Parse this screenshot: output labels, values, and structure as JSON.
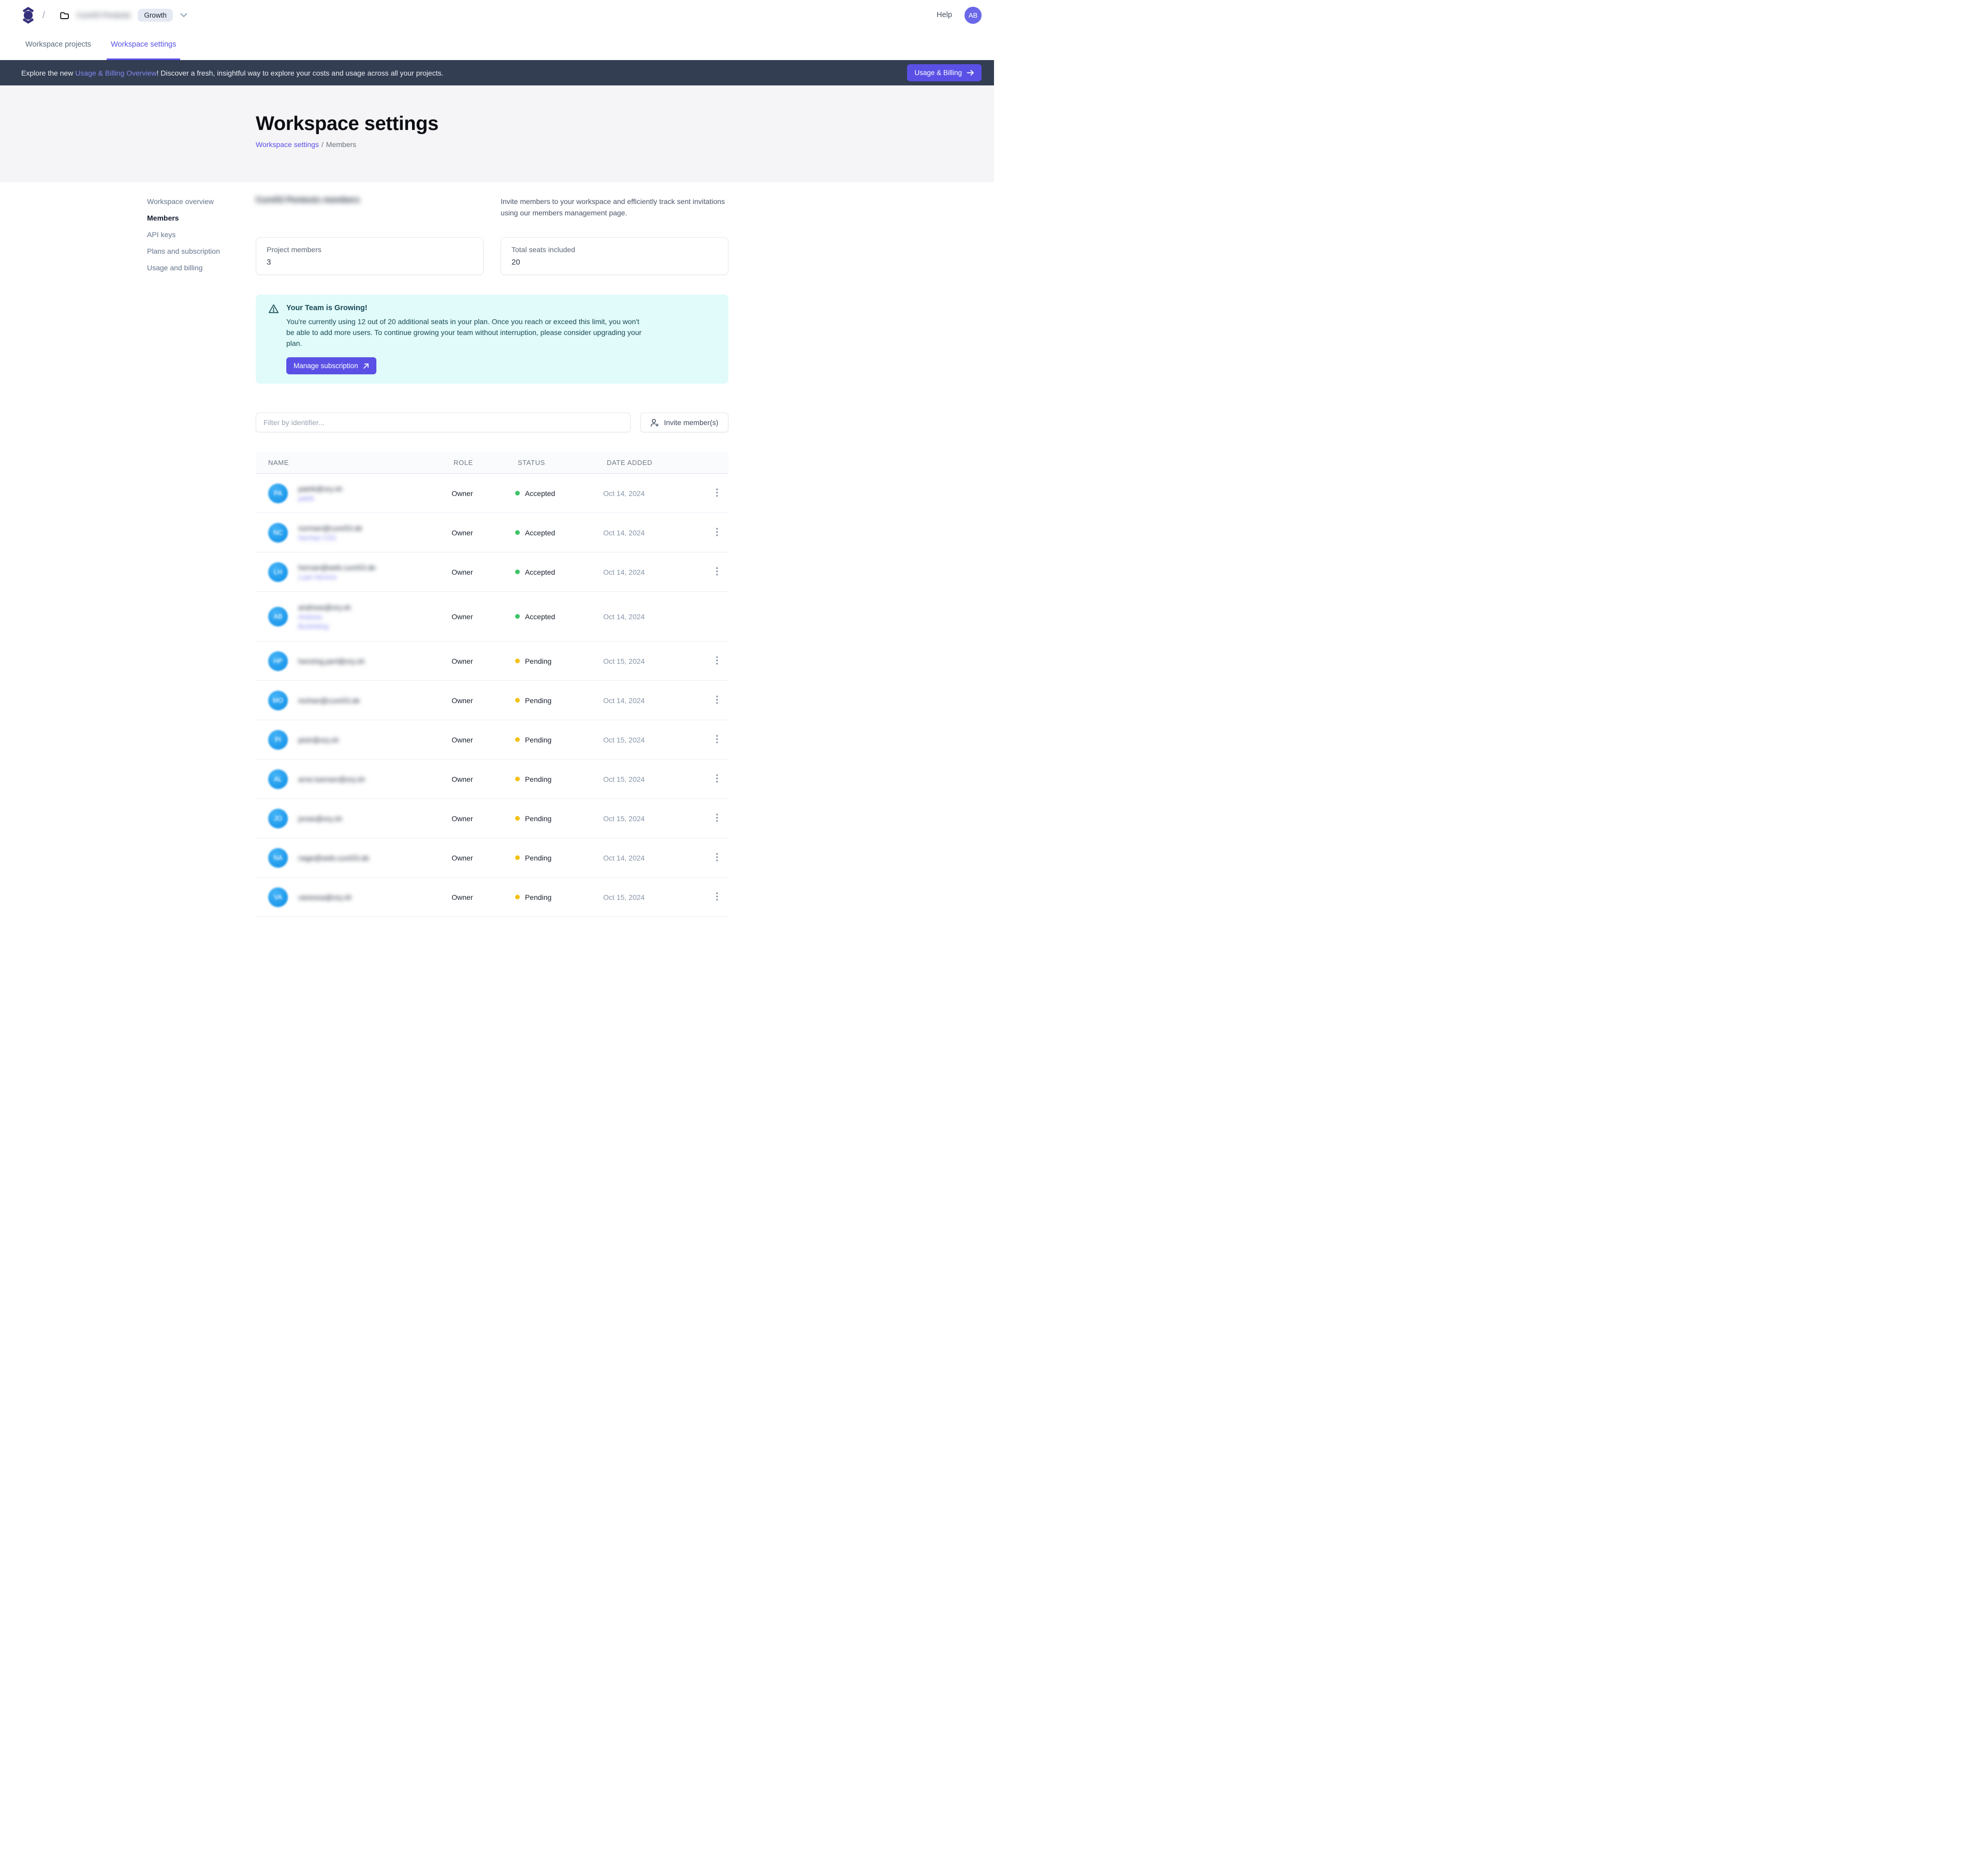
{
  "colors": {
    "accent": "#5a50e6",
    "banner_bg": "#333e52",
    "banner_link": "#8488f1",
    "header_bg": "#f5f5f7",
    "alert_bg": "#e0fbf9",
    "alert_text": "#1b4a57",
    "status_accepted_dot": "#3dc468",
    "status_pending_dot": "#f2c115",
    "row_avatar_blue": "#1d9bf0",
    "topbar_avatar_purple": "#6a67e8",
    "plan_pill_bg": "#e4e9f3"
  },
  "topbar": {
    "breadcrumb_separator": "/",
    "workspace_name_redacted": "Cure53 Pentests",
    "plan_badge": "Growth",
    "help_label": "Help",
    "avatar_initials": "AB"
  },
  "tabs": [
    {
      "label": "Workspace projects",
      "active": false
    },
    {
      "label": "Workspace settings",
      "active": true
    }
  ],
  "banner": {
    "text_prefix": "Explore the new ",
    "link_text": "Usage & Billing Overview",
    "text_suffix": "! Discover a fresh, insightful way to explore your costs and usage across all your projects.",
    "button_label": "Usage & Billing"
  },
  "header": {
    "title": "Workspace settings",
    "breadcrumb_link": "Workspace settings",
    "breadcrumb_sep": "/",
    "breadcrumb_current": "Members"
  },
  "sidebar": {
    "items": [
      {
        "label": "Workspace overview",
        "active": false
      },
      {
        "label": "Members",
        "active": true
      },
      {
        "label": "API keys",
        "active": false
      },
      {
        "label": "Plans and subscription",
        "active": false
      },
      {
        "label": "Usage and billing",
        "active": false
      }
    ]
  },
  "members": {
    "section_title_redacted": "Cure53 Pentests members",
    "description": "Invite members to your workspace and efficiently track sent invitations using our members management page.",
    "stats": [
      {
        "label": "Project members",
        "value": "3"
      },
      {
        "label": "Total seats included",
        "value": "20"
      }
    ],
    "alert": {
      "title": "Your Team is Growing!",
      "body": "You're currently using 12 out of 20 additional seats in your plan. Once you reach or exceed this limit, you won't be able to add more users. To continue growing your team without interruption, please consider upgrading your plan.",
      "button_label": "Manage subscription"
    },
    "filter_placeholder": "Filter by identifier...",
    "invite_button_label": "Invite member(s)"
  },
  "table": {
    "columns": [
      "NAME",
      "ROLE",
      "STATUS",
      "DATE ADDED"
    ],
    "rows": [
      {
        "avatar": "PA",
        "redacted": true,
        "name_lines": [
          "patrik@ory.sh",
          "patrik"
        ],
        "role": "Owner",
        "status": "Accepted",
        "date": "Oct 14, 2024",
        "menu": true
      },
      {
        "avatar": "NC",
        "redacted": true,
        "name_lines": [
          "norman@cure53.de",
          "Norman CS3"
        ],
        "role": "Owner",
        "status": "Accepted",
        "date": "Oct 14, 2024",
        "menu": true
      },
      {
        "avatar": "LH",
        "redacted": true,
        "name_lines": [
          "hernan@web.cure53.de",
          "Luan Herrera"
        ],
        "role": "Owner",
        "status": "Accepted",
        "date": "Oct 14, 2024",
        "menu": true
      },
      {
        "avatar": "AB",
        "redacted": true,
        "name_lines": [
          "andreas@ory.sh",
          "Andreas",
          "Bucksteeg"
        ],
        "role": "Owner",
        "status": "Accepted",
        "date": "Oct 14, 2024",
        "menu": false
      },
      {
        "avatar": "HP",
        "redacted": true,
        "name_lines": [
          "henning.perl@ory.sh"
        ],
        "role": "Owner",
        "status": "Pending",
        "date": "Oct 15, 2024",
        "menu": true
      },
      {
        "avatar": "MO",
        "redacted": true,
        "name_lines": [
          "mohan@cure53.de"
        ],
        "role": "Owner",
        "status": "Pending",
        "date": "Oct 14, 2024",
        "menu": true
      },
      {
        "avatar": "PI",
        "redacted": true,
        "name_lines": [
          "piotr@ory.sh"
        ],
        "role": "Owner",
        "status": "Pending",
        "date": "Oct 15, 2024",
        "menu": true
      },
      {
        "avatar": "AL",
        "redacted": true,
        "name_lines": [
          "arne.luenser@ory.sh"
        ],
        "role": "Owner",
        "status": "Pending",
        "date": "Oct 15, 2024",
        "menu": true
      },
      {
        "avatar": "JO",
        "redacted": true,
        "name_lines": [
          "jonas@ory.sh"
        ],
        "role": "Owner",
        "status": "Pending",
        "date": "Oct 15, 2024",
        "menu": true
      },
      {
        "avatar": "NA",
        "redacted": true,
        "name_lines": [
          "nage@web.cure53.de"
        ],
        "role": "Owner",
        "status": "Pending",
        "date": "Oct 14, 2024",
        "menu": true
      },
      {
        "avatar": "VA",
        "redacted": true,
        "name_lines": [
          "vanessa@ory.sh"
        ],
        "role": "Owner",
        "status": "Pending",
        "date": "Oct 15, 2024",
        "menu": true
      }
    ]
  }
}
